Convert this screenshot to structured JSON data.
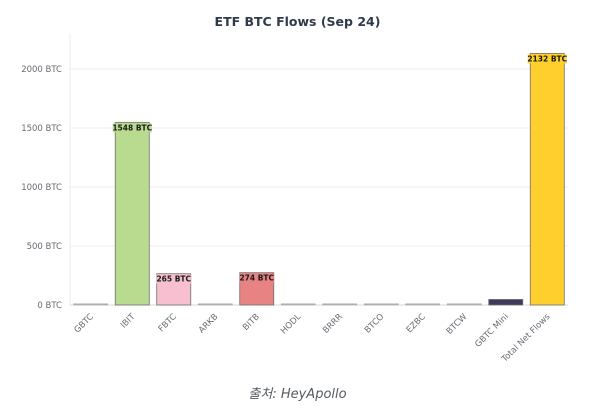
{
  "chart_data": {
    "type": "bar",
    "title": "ETF BTC Flows (Sep 24)",
    "xlabel": "",
    "ylabel": "",
    "ylim": [
      0,
      2300
    ],
    "yticks": [
      0,
      500,
      1000,
      1500,
      2000
    ],
    "ytick_labels": [
      "0 BTC",
      "500 BTC",
      "1000 BTC",
      "1500 BTC",
      "2000 BTC"
    ],
    "grid": true,
    "categories": [
      "GBTC",
      "IBIT",
      "FBTC",
      "ARKB",
      "BITB",
      "HODL",
      "BRRR",
      "BTCO",
      "EZBC",
      "BTCW",
      "GBTC Mini",
      "Total Net Flows"
    ],
    "values": [
      0,
      1548,
      265,
      0,
      274,
      0,
      0,
      0,
      0,
      0,
      47,
      2132
    ],
    "colors": [
      "#b5b5b5",
      "#b8db8f",
      "#f7bfcf",
      "#b5b5b5",
      "#e88383",
      "#b5b5b5",
      "#b5b5b5",
      "#b5b5b5",
      "#b5b5b5",
      "#b5b5b5",
      "#3d3a5c",
      "#ffcf2e"
    ],
    "data_labels": [
      "",
      "1548 BTC",
      "265 BTC",
      "",
      "274 BTC",
      "",
      "",
      "",
      "",
      "",
      "",
      "2132 BTC"
    ]
  },
  "source": "출처: HeyApollo"
}
